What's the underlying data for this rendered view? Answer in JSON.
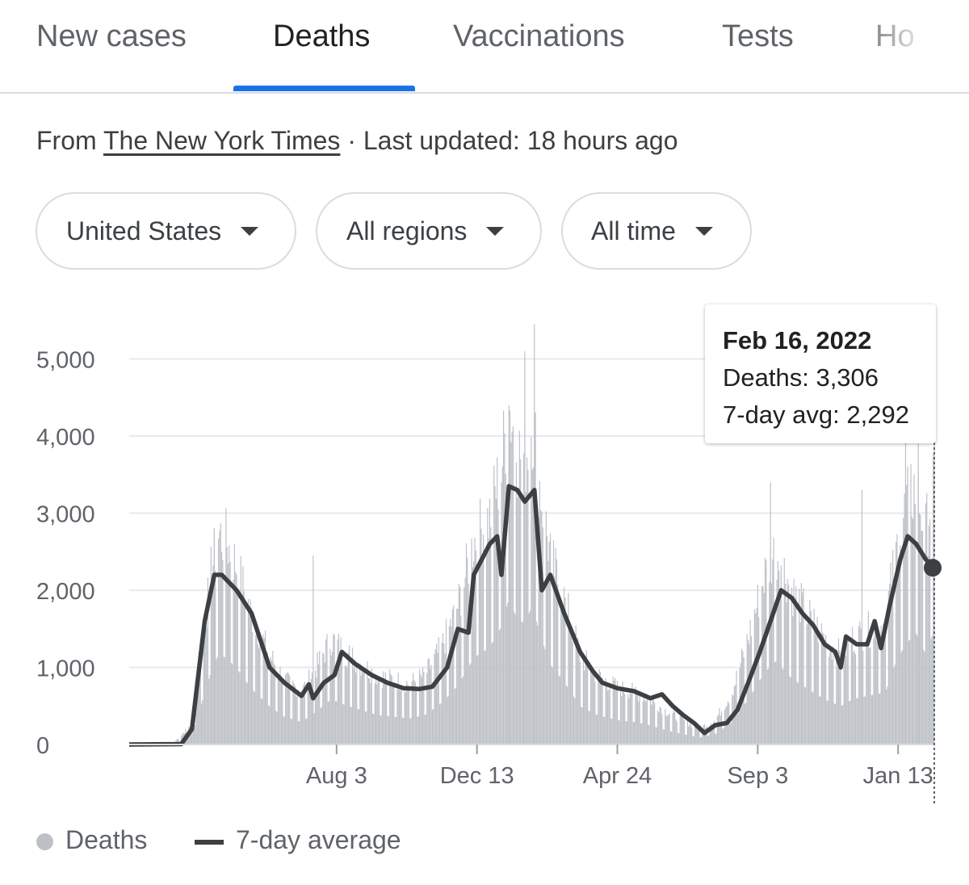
{
  "tabs": [
    {
      "label": "New cases"
    },
    {
      "label": "Deaths"
    },
    {
      "label": "Vaccinations"
    },
    {
      "label": "Tests"
    },
    {
      "label": "Ho"
    }
  ],
  "source": {
    "prefix": "From",
    "link": "The New York Times",
    "updated": "· Last updated: 18 hours ago"
  },
  "filters": [
    {
      "label": "United States"
    },
    {
      "label": "All regions"
    },
    {
      "label": "All time"
    }
  ],
  "tooltip": {
    "date": "Feb 16, 2022",
    "deaths": "Deaths: 3,306",
    "avg": "7-day avg: 2,292"
  },
  "legend": {
    "bars": "Deaths",
    "line": "7-day average"
  },
  "colors": {
    "accent": "#1a73e8",
    "bars": "#bdc1c6",
    "line": "#3c4043",
    "grid": "#e8eaed"
  },
  "chart_data": {
    "type": "bar",
    "title": "",
    "ylim": [
      0,
      5000
    ],
    "y_ticks": [
      0,
      1000,
      2000,
      3000,
      4000,
      5000
    ],
    "y_tick_labels": [
      "0",
      "1,000",
      "2,000",
      "3,000",
      "4,000",
      "5,000"
    ],
    "x_ticks": [
      "2020-08-03",
      "2020-12-13",
      "2021-04-24",
      "2021-09-03",
      "2022-01-13"
    ],
    "x_tick_labels": [
      "Aug 3",
      "Dec 13",
      "Apr 24",
      "Sep 3",
      "Jan 13"
    ],
    "x_range": [
      "2020-01-21",
      "2022-02-16"
    ],
    "legend_position": "bottom-left",
    "grid": true,
    "series": [
      {
        "name": "Deaths",
        "type": "bar",
        "points": [
          [
            "2020-01-21",
            0
          ],
          [
            "2020-03-01",
            0
          ],
          [
            "2020-03-20",
            250
          ],
          [
            "2020-04-07",
            2100
          ],
          [
            "2020-04-14",
            2600
          ],
          [
            "2020-04-21",
            2500
          ],
          [
            "2020-05-01",
            2200
          ],
          [
            "2020-05-15",
            1600
          ],
          [
            "2020-06-01",
            1100
          ],
          [
            "2020-06-15",
            800
          ],
          [
            "2020-07-01",
            650
          ],
          [
            "2020-07-15",
            950
          ],
          [
            "2020-07-29",
            1300
          ],
          [
            "2020-08-10",
            1150
          ],
          [
            "2020-08-25",
            1000
          ],
          [
            "2020-09-10",
            850
          ],
          [
            "2020-09-25",
            800
          ],
          [
            "2020-10-10",
            750
          ],
          [
            "2020-10-25",
            850
          ],
          [
            "2020-11-10",
            1200
          ],
          [
            "2020-11-25",
            1700
          ],
          [
            "2020-12-10",
            2500
          ],
          [
            "2020-12-25",
            2800
          ],
          [
            "2021-01-05",
            3400
          ],
          [
            "2021-01-12",
            4200
          ],
          [
            "2021-01-20",
            3600
          ],
          [
            "2021-01-27",
            3500
          ],
          [
            "2021-02-03",
            4000
          ],
          [
            "2021-02-10",
            3200
          ],
          [
            "2021-02-20",
            2300
          ],
          [
            "2021-03-05",
            1800
          ],
          [
            "2021-03-20",
            1100
          ],
          [
            "2021-04-05",
            850
          ],
          [
            "2021-04-24",
            700
          ],
          [
            "2021-05-10",
            650
          ],
          [
            "2021-05-25",
            550
          ],
          [
            "2021-06-10",
            400
          ],
          [
            "2021-06-25",
            300
          ],
          [
            "2021-07-10",
            200
          ],
          [
            "2021-07-25",
            300
          ],
          [
            "2021-08-10",
            650
          ],
          [
            "2021-08-25",
            1300
          ],
          [
            "2021-09-10",
            2100
          ],
          [
            "2021-09-20",
            2400
          ],
          [
            "2021-10-05",
            1900
          ],
          [
            "2021-10-20",
            1600
          ],
          [
            "2021-11-05",
            1300
          ],
          [
            "2021-11-20",
            1100
          ],
          [
            "2021-12-01",
            1300
          ],
          [
            "2021-12-15",
            1400
          ],
          [
            "2022-01-01",
            1500
          ],
          [
            "2022-01-10",
            2300
          ],
          [
            "2022-01-20",
            2900
          ],
          [
            "2022-01-30",
            3200
          ],
          [
            "2022-02-08",
            2600
          ],
          [
            "2022-02-16",
            3306
          ]
        ],
        "notable_peaks": [
          [
            "2020-04-10",
            2750
          ],
          [
            "2020-07-12",
            2450
          ],
          [
            "2021-01-12",
            4400
          ],
          [
            "2021-01-27",
            5100
          ],
          [
            "2021-02-05",
            5450
          ],
          [
            "2021-09-15",
            3400
          ],
          [
            "2021-12-10",
            3300
          ],
          [
            "2022-01-20",
            3950
          ],
          [
            "2022-02-01",
            3900
          ]
        ]
      },
      {
        "name": "7-day average",
        "type": "line",
        "points": [
          [
            "2020-01-21",
            0
          ],
          [
            "2020-03-10",
            5
          ],
          [
            "2020-03-20",
            200
          ],
          [
            "2020-04-01",
            1600
          ],
          [
            "2020-04-10",
            2200
          ],
          [
            "2020-04-17",
            2200
          ],
          [
            "2020-05-01",
            2000
          ],
          [
            "2020-05-15",
            1700
          ],
          [
            "2020-06-01",
            1000
          ],
          [
            "2020-06-15",
            800
          ],
          [
            "2020-07-01",
            630
          ],
          [
            "2020-07-08",
            780
          ],
          [
            "2020-07-12",
            600
          ],
          [
            "2020-07-22",
            800
          ],
          [
            "2020-08-01",
            900
          ],
          [
            "2020-08-08",
            1200
          ],
          [
            "2020-08-20",
            1050
          ],
          [
            "2020-09-05",
            900
          ],
          [
            "2020-09-20",
            800
          ],
          [
            "2020-10-05",
            730
          ],
          [
            "2020-10-20",
            720
          ],
          [
            "2020-11-01",
            750
          ],
          [
            "2020-11-15",
            1000
          ],
          [
            "2020-11-25",
            1500
          ],
          [
            "2020-12-05",
            1450
          ],
          [
            "2020-12-10",
            2200
          ],
          [
            "2020-12-25",
            2600
          ],
          [
            "2021-01-01",
            2700
          ],
          [
            "2021-01-05",
            2200
          ],
          [
            "2021-01-12",
            3350
          ],
          [
            "2021-01-20",
            3300
          ],
          [
            "2021-01-27",
            3150
          ],
          [
            "2021-02-05",
            3300
          ],
          [
            "2021-02-12",
            2000
          ],
          [
            "2021-02-20",
            2200
          ],
          [
            "2021-03-05",
            1700
          ],
          [
            "2021-03-20",
            1200
          ],
          [
            "2021-04-01",
            950
          ],
          [
            "2021-04-10",
            800
          ],
          [
            "2021-04-24",
            730
          ],
          [
            "2021-05-10",
            690
          ],
          [
            "2021-05-25",
            600
          ],
          [
            "2021-06-05",
            650
          ],
          [
            "2021-06-15",
            500
          ],
          [
            "2021-06-25",
            380
          ],
          [
            "2021-07-05",
            280
          ],
          [
            "2021-07-15",
            150
          ],
          [
            "2021-07-25",
            250
          ],
          [
            "2021-08-05",
            280
          ],
          [
            "2021-08-15",
            450
          ],
          [
            "2021-08-25",
            800
          ],
          [
            "2021-09-05",
            1200
          ],
          [
            "2021-09-15",
            1600
          ],
          [
            "2021-09-25",
            2000
          ],
          [
            "2021-10-05",
            1900
          ],
          [
            "2021-10-15",
            1700
          ],
          [
            "2021-10-25",
            1550
          ],
          [
            "2021-11-05",
            1300
          ],
          [
            "2021-11-15",
            1200
          ],
          [
            "2021-11-20",
            1000
          ],
          [
            "2021-11-25",
            1400
          ],
          [
            "2021-12-05",
            1300
          ],
          [
            "2021-12-15",
            1300
          ],
          [
            "2021-12-22",
            1600
          ],
          [
            "2021-12-28",
            1250
          ],
          [
            "2022-01-05",
            1800
          ],
          [
            "2022-01-15",
            2400
          ],
          [
            "2022-01-22",
            2700
          ],
          [
            "2022-01-30",
            2600
          ],
          [
            "2022-02-08",
            2400
          ],
          [
            "2022-02-16",
            2292
          ]
        ]
      }
    ],
    "highlight": {
      "date": "2022-02-16",
      "deaths": 3306,
      "avg": 2292
    }
  }
}
